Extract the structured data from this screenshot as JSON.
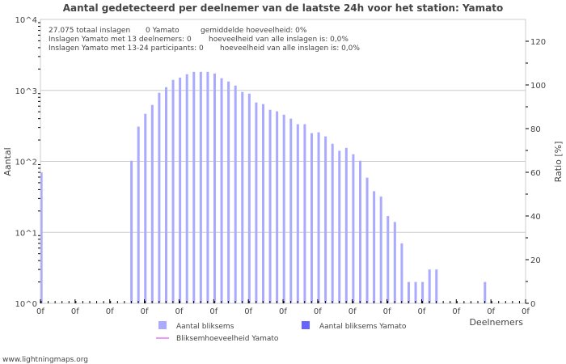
{
  "chart_data": {
    "type": "bar",
    "title": "Aantal gedetecteerd per deelnemer van de laatste 24h voor het station: Yamato",
    "xlabel": "Deelnemers",
    "ylabel": "Aantal",
    "ylabel_right": "Ratio [%]",
    "yscale": "log",
    "ylim": [
      1,
      10000
    ],
    "ylim_right": [
      0,
      130
    ],
    "y_tick_labels": [
      "10^0",
      "10^1",
      "10^2",
      "10^3",
      "10^4"
    ],
    "y_right_ticks": [
      0,
      20,
      40,
      60,
      80,
      100,
      120
    ],
    "x_tick_labels": [
      "0f",
      "0f",
      "0f",
      "0f",
      "0f",
      "0f",
      "0f",
      "0f",
      "0f",
      "0f",
      "0f",
      "0f",
      "0f",
      "0f",
      "0f"
    ],
    "grid": true,
    "info_lines": [
      [
        "27.075 totaal inslagen",
        "0 Yamato",
        "gemiddelde hoeveelheid: 0%"
      ],
      [
        "Inslagen Yamato met 13 deelnemers: 0",
        "hoeveelheid van alle inslagen is: 0,0%"
      ],
      [
        "Inslagen Yamato met 13-24 participants: 0",
        "hoeveelheid van alle inslagen is: 0,0%"
      ]
    ],
    "series": [
      {
        "name": "Aantal bliksems",
        "color": "#aaaaff",
        "values": [
          70,
          0,
          0,
          0,
          0,
          0,
          0,
          0,
          0,
          0,
          0,
          0,
          0,
          102,
          309,
          468,
          624,
          925,
          1110,
          1406,
          1514,
          1688,
          1825,
          1825,
          1825,
          1730,
          1484,
          1334,
          1170,
          949,
          901,
          675,
          641,
          533,
          507,
          455,
          400,
          334,
          334,
          250,
          257,
          225,
          177,
          141,
          155,
          126,
          102,
          59,
          38,
          32,
          17,
          14,
          7,
          2,
          2,
          2,
          3,
          3,
          0,
          1,
          0,
          1,
          1,
          0,
          2,
          1,
          0,
          0,
          0,
          0
        ]
      },
      {
        "name": "Aantal bliksems Yamato",
        "color": "#6666ff",
        "values": []
      },
      {
        "name": "Bliksemhoeveelheid Yamato",
        "color": "#ee99ff",
        "type": "line",
        "values": []
      }
    ]
  },
  "footer": "www.lightningmaps.org"
}
